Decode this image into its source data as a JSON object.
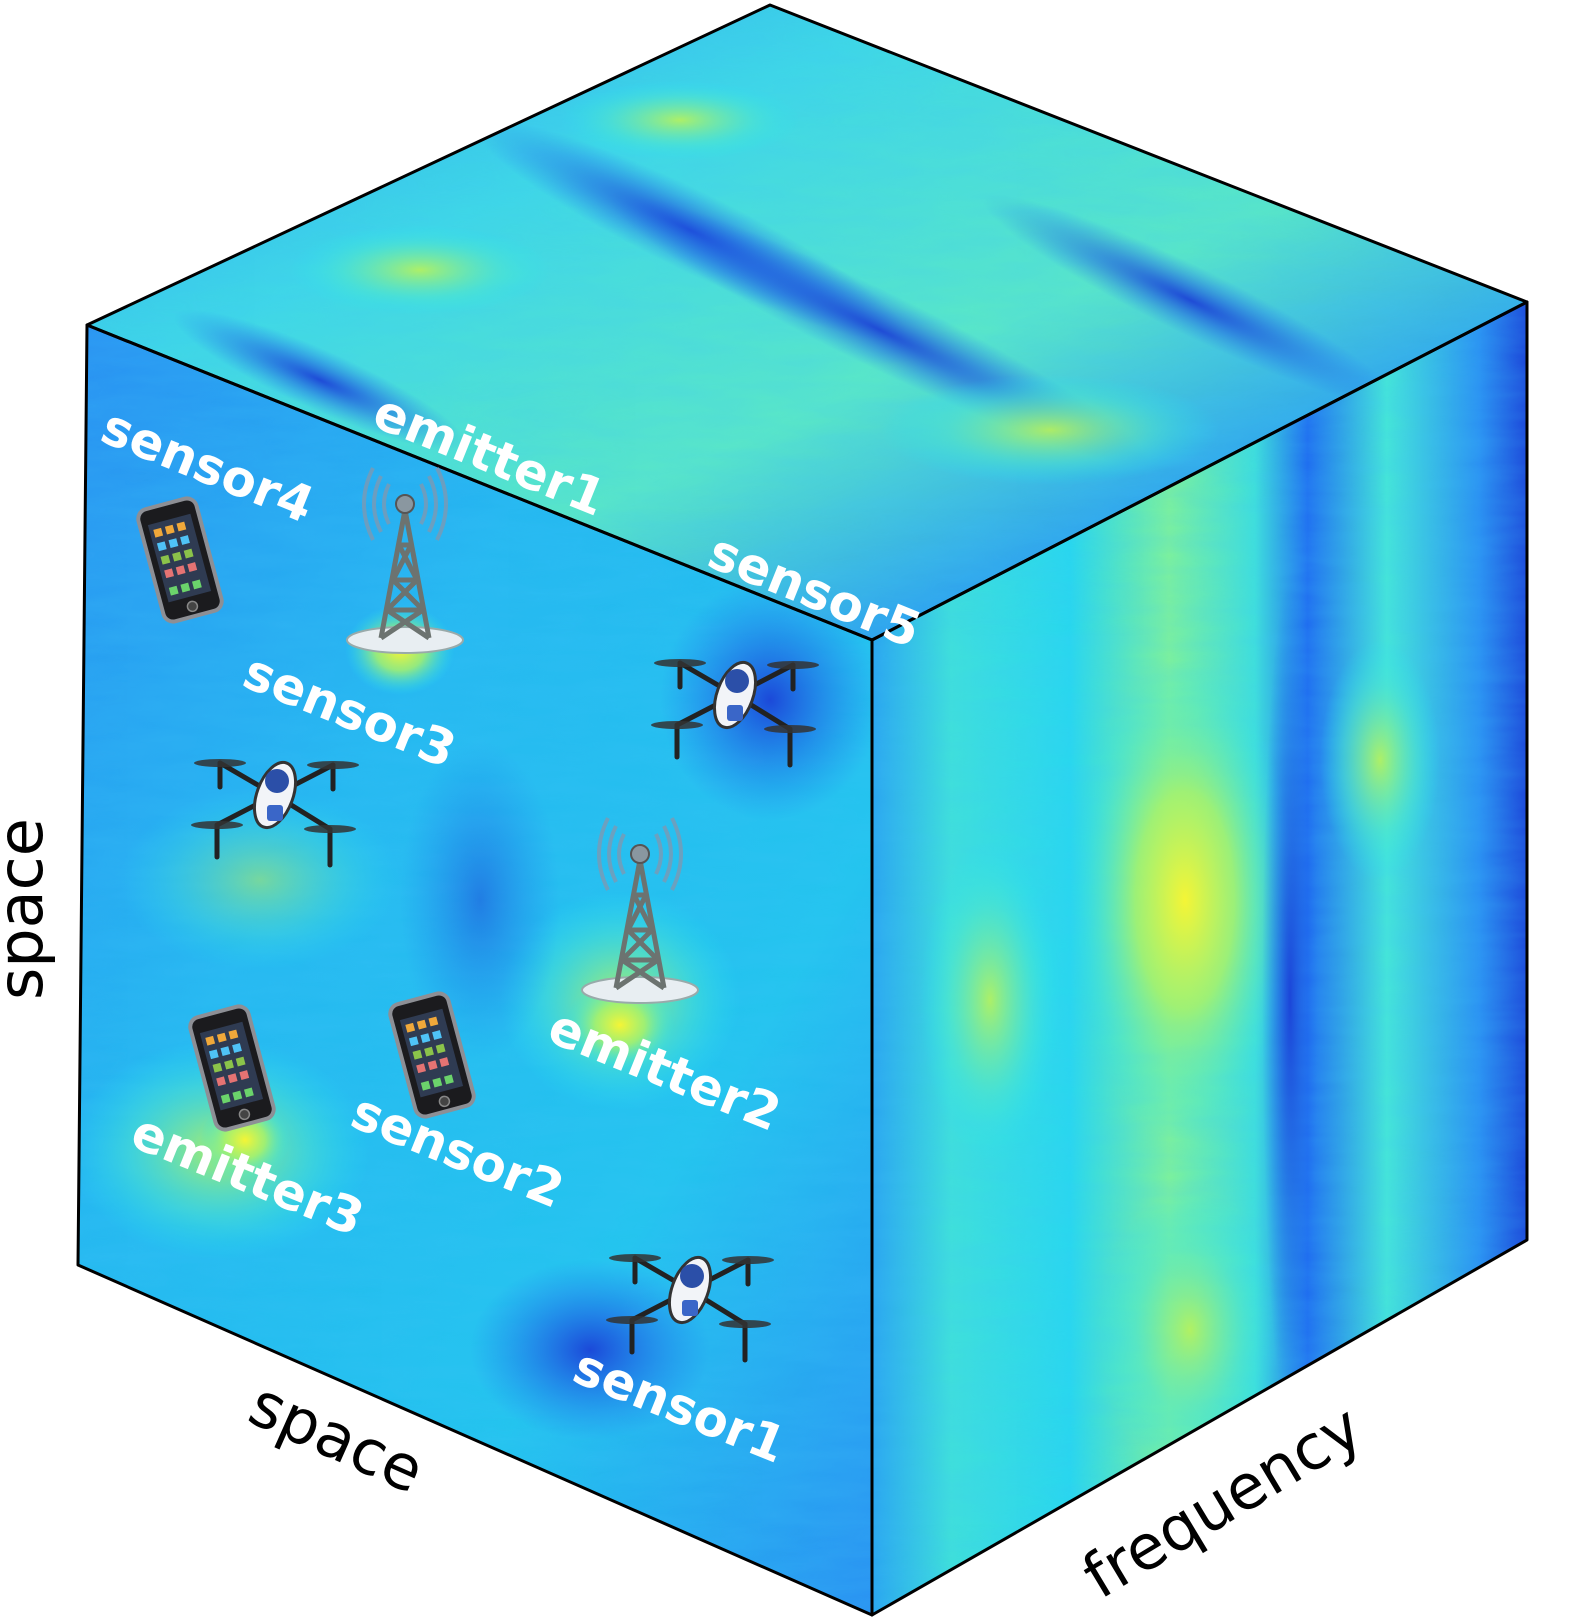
{
  "axes": {
    "left": "space",
    "bottom": "space",
    "right": "frequency"
  },
  "labels": {
    "emitter1": "emitter1",
    "emitter2": "emitter2",
    "emitter3": "emitter3",
    "sensor1": "sensor1",
    "sensor2": "sensor2",
    "sensor3": "sensor3",
    "sensor4": "sensor4",
    "sensor5": "sensor5"
  },
  "colors": {
    "deep_blue": "#1a3cd6",
    "blue": "#1f8cf0",
    "cyan": "#27e6f2",
    "green": "#7ef29a",
    "yellow": "#f4f536",
    "edge": "#000000"
  }
}
